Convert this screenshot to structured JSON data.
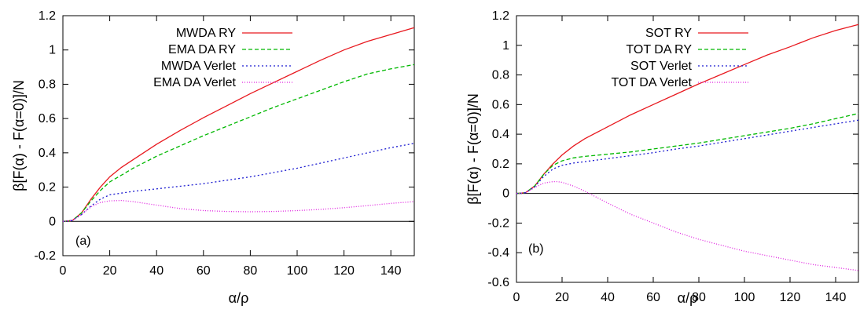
{
  "chart_data": [
    {
      "type": "line",
      "panel_label": "(a)",
      "xlabel": "α/ρ",
      "ylabel": "β[F(α) - F(α=0)]/N",
      "xlim": [
        0,
        150
      ],
      "ylim": [
        -0.2,
        1.2
      ],
      "xticks": [
        0,
        20,
        40,
        60,
        80,
        100,
        120,
        140
      ],
      "yticks": [
        -0.2,
        0,
        0.2,
        0.4,
        0.6,
        0.8,
        1,
        1.2
      ],
      "xtick_labels": [
        "0",
        "20",
        "40",
        "60",
        "80",
        "100",
        "120",
        "140"
      ],
      "ytick_labels": [
        "-0.2",
        "0",
        "0.2",
        "0.4",
        "0.6",
        "0.8",
        "1",
        "1.2"
      ],
      "grid": false,
      "legend_position": "top-left",
      "zero_line": true,
      "series": [
        {
          "name": "MWDA RY",
          "color": "#e8191f",
          "dash": "solid",
          "x": [
            0,
            4,
            8,
            12,
            16,
            20,
            25,
            30,
            40,
            50,
            60,
            70,
            80,
            90,
            100,
            110,
            120,
            130,
            140,
            150
          ],
          "y": [
            0,
            0.005,
            0.05,
            0.13,
            0.2,
            0.26,
            0.315,
            0.36,
            0.45,
            0.53,
            0.605,
            0.675,
            0.745,
            0.81,
            0.875,
            0.94,
            1.0,
            1.05,
            1.09,
            1.13
          ]
        },
        {
          "name": "EMA DA RY",
          "color": "#00b800",
          "dash": "5,3",
          "x": [
            0,
            4,
            8,
            12,
            16,
            20,
            25,
            30,
            40,
            50,
            60,
            70,
            80,
            90,
            100,
            110,
            120,
            130,
            140,
            150
          ],
          "y": [
            0,
            0.005,
            0.05,
            0.12,
            0.18,
            0.23,
            0.27,
            0.31,
            0.38,
            0.44,
            0.5,
            0.555,
            0.61,
            0.665,
            0.715,
            0.765,
            0.815,
            0.86,
            0.89,
            0.915
          ]
        },
        {
          "name": "MWDA Verlet",
          "color": "#1a1ad0",
          "dash": "2,3",
          "x": [
            0,
            4,
            8,
            12,
            16,
            20,
            25,
            30,
            40,
            50,
            60,
            70,
            80,
            90,
            100,
            110,
            120,
            130,
            140,
            150
          ],
          "y": [
            0,
            0.005,
            0.04,
            0.09,
            0.13,
            0.155,
            0.165,
            0.175,
            0.19,
            0.205,
            0.22,
            0.24,
            0.26,
            0.285,
            0.31,
            0.34,
            0.37,
            0.4,
            0.43,
            0.455
          ]
        },
        {
          "name": "EMA DA Verlet",
          "color": "#e020e0",
          "dash": "1,2",
          "x": [
            0,
            4,
            8,
            12,
            16,
            20,
            25,
            30,
            40,
            50,
            60,
            70,
            80,
            90,
            100,
            110,
            120,
            130,
            140,
            150
          ],
          "y": [
            0,
            0.005,
            0.04,
            0.085,
            0.11,
            0.12,
            0.122,
            0.115,
            0.095,
            0.075,
            0.063,
            0.058,
            0.056,
            0.058,
            0.063,
            0.07,
            0.08,
            0.092,
            0.105,
            0.115
          ]
        }
      ]
    },
    {
      "type": "line",
      "panel_label": "(b)",
      "xlabel": "α/ρ",
      "ylabel": "β[F(α) - F(α=0)]/N",
      "xlim": [
        0,
        150
      ],
      "ylim": [
        -0.6,
        1.2
      ],
      "xticks": [
        0,
        20,
        40,
        60,
        80,
        100,
        120,
        140
      ],
      "yticks": [
        -0.6,
        -0.4,
        -0.2,
        0,
        0.2,
        0.4,
        0.6,
        0.8,
        1,
        1.2
      ],
      "xtick_labels": [
        "0",
        "20",
        "40",
        "60",
        "80",
        "100",
        "120",
        "140"
      ],
      "ytick_labels": [
        "-0.6",
        "-0.4",
        "-0.2",
        "0",
        "0.2",
        "0.4",
        "0.6",
        "0.8",
        "1",
        "1.2"
      ],
      "grid": false,
      "legend_position": "top-left",
      "zero_line": true,
      "series": [
        {
          "name": "SOT RY",
          "color": "#e8191f",
          "dash": "solid",
          "x": [
            0,
            4,
            8,
            12,
            16,
            20,
            25,
            30,
            40,
            50,
            60,
            70,
            80,
            90,
            100,
            110,
            120,
            130,
            140,
            150
          ],
          "y": [
            0,
            0.005,
            0.05,
            0.13,
            0.2,
            0.26,
            0.32,
            0.37,
            0.45,
            0.53,
            0.6,
            0.67,
            0.74,
            0.805,
            0.87,
            0.935,
            0.99,
            1.05,
            1.1,
            1.14
          ]
        },
        {
          "name": "TOT DA RY",
          "color": "#00b800",
          "dash": "5,3",
          "x": [
            0,
            4,
            8,
            12,
            16,
            20,
            25,
            30,
            40,
            50,
            60,
            70,
            80,
            90,
            100,
            110,
            120,
            130,
            140,
            150
          ],
          "y": [
            0,
            0.005,
            0.05,
            0.13,
            0.19,
            0.22,
            0.24,
            0.25,
            0.265,
            0.28,
            0.3,
            0.32,
            0.34,
            0.365,
            0.39,
            0.415,
            0.44,
            0.47,
            0.505,
            0.54
          ]
        },
        {
          "name": "SOT Verlet",
          "color": "#1a1ad0",
          "dash": "2,3",
          "x": [
            0,
            4,
            8,
            12,
            16,
            20,
            25,
            30,
            40,
            50,
            60,
            70,
            80,
            90,
            100,
            110,
            120,
            130,
            140,
            150
          ],
          "y": [
            0,
            0.005,
            0.045,
            0.115,
            0.165,
            0.19,
            0.205,
            0.215,
            0.235,
            0.255,
            0.275,
            0.3,
            0.32,
            0.345,
            0.37,
            0.395,
            0.42,
            0.445,
            0.47,
            0.495
          ]
        },
        {
          "name": "TOT DA Verlet",
          "color": "#e020e0",
          "dash": "1,2",
          "x": [
            0,
            4,
            8,
            12,
            16,
            18,
            20,
            25,
            30,
            40,
            50,
            60,
            70,
            80,
            90,
            100,
            110,
            120,
            130,
            140,
            150
          ],
          "y": [
            0,
            0.005,
            0.04,
            0.07,
            0.08,
            0.08,
            0.075,
            0.05,
            0.015,
            -0.065,
            -0.14,
            -0.2,
            -0.26,
            -0.31,
            -0.35,
            -0.39,
            -0.42,
            -0.45,
            -0.48,
            -0.5,
            -0.52
          ]
        }
      ]
    }
  ]
}
